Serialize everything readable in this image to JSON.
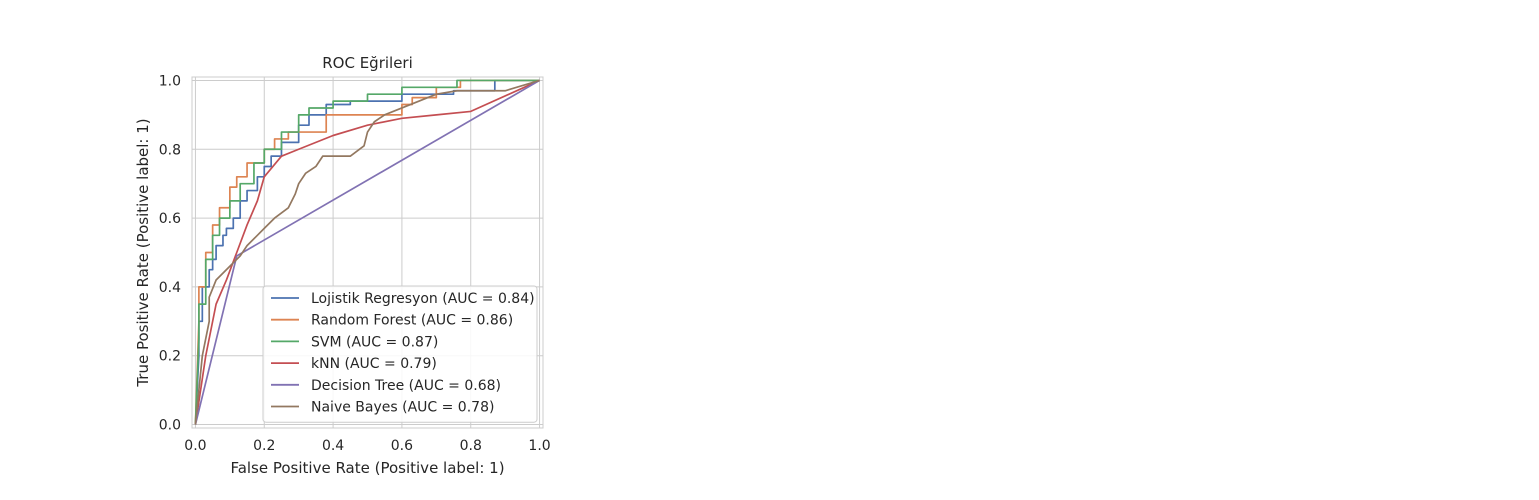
{
  "chart_data": {
    "type": "line",
    "title": "ROC Eğrileri",
    "xlabel": "False Positive Rate (Positive label: 1)",
    "ylabel": "True Positive Rate (Positive label: 1)",
    "xlim": [
      -0.01,
      1.01
    ],
    "ylim": [
      -0.01,
      1.01
    ],
    "xticks": [
      0.0,
      0.2,
      0.4,
      0.6,
      0.8,
      1.0
    ],
    "yticks": [
      0.0,
      0.2,
      0.4,
      0.6,
      0.8,
      1.0
    ],
    "xtick_labels": [
      "0.0",
      "0.2",
      "0.4",
      "0.6",
      "0.8",
      "1.0"
    ],
    "ytick_labels": [
      "0.0",
      "0.2",
      "0.4",
      "0.6",
      "0.8",
      "1.0"
    ],
    "grid": true,
    "legend_position": "lower-right",
    "series": [
      {
        "name": "Lojistik Regresyon (AUC = 0.84)",
        "color": "#4c72b0",
        "x": [
          0,
          0.01,
          0.01,
          0.02,
          0.02,
          0.04,
          0.04,
          0.05,
          0.05,
          0.06,
          0.06,
          0.08,
          0.08,
          0.09,
          0.09,
          0.11,
          0.11,
          0.13,
          0.13,
          0.15,
          0.15,
          0.18,
          0.18,
          0.2,
          0.2,
          0.22,
          0.22,
          0.25,
          0.25,
          0.3,
          0.3,
          0.33,
          0.33,
          0.38,
          0.38,
          0.45,
          0.45,
          0.6,
          0.6,
          0.75,
          0.75,
          0.87,
          0.87,
          1.0
        ],
        "y": [
          0,
          0.2,
          0.3,
          0.3,
          0.4,
          0.4,
          0.45,
          0.45,
          0.48,
          0.48,
          0.52,
          0.52,
          0.55,
          0.55,
          0.57,
          0.57,
          0.6,
          0.6,
          0.65,
          0.65,
          0.68,
          0.68,
          0.72,
          0.72,
          0.75,
          0.75,
          0.78,
          0.78,
          0.82,
          0.82,
          0.87,
          0.87,
          0.9,
          0.9,
          0.93,
          0.93,
          0.94,
          0.94,
          0.96,
          0.96,
          0.97,
          0.97,
          1.0,
          1.0
        ]
      },
      {
        "name": "Random Forest (AUC = 0.86)",
        "color": "#dd8452",
        "x": [
          0,
          0.01,
          0.01,
          0.03,
          0.03,
          0.05,
          0.05,
          0.07,
          0.07,
          0.1,
          0.1,
          0.12,
          0.12,
          0.15,
          0.15,
          0.2,
          0.2,
          0.23,
          0.23,
          0.27,
          0.27,
          0.32,
          0.32,
          0.38,
          0.38,
          0.45,
          0.45,
          0.6,
          0.6,
          0.63,
          0.63,
          0.7,
          0.7,
          0.77,
          0.77,
          1.0
        ],
        "y": [
          0,
          0.3,
          0.4,
          0.4,
          0.5,
          0.5,
          0.58,
          0.58,
          0.63,
          0.63,
          0.69,
          0.69,
          0.72,
          0.72,
          0.76,
          0.76,
          0.8,
          0.8,
          0.83,
          0.83,
          0.85,
          0.85,
          0.85,
          0.85,
          0.9,
          0.9,
          0.9,
          0.9,
          0.93,
          0.93,
          0.95,
          0.95,
          0.98,
          0.98,
          1.0,
          1.0
        ]
      },
      {
        "name": "SVM (AUC = 0.87)",
        "color": "#55a868",
        "x": [
          0,
          0.01,
          0.01,
          0.03,
          0.03,
          0.05,
          0.05,
          0.07,
          0.07,
          0.1,
          0.1,
          0.13,
          0.13,
          0.17,
          0.17,
          0.2,
          0.2,
          0.25,
          0.25,
          0.3,
          0.3,
          0.33,
          0.33,
          0.4,
          0.4,
          0.5,
          0.5,
          0.6,
          0.6,
          0.76,
          0.76,
          1.0
        ],
        "y": [
          0,
          0.25,
          0.35,
          0.35,
          0.48,
          0.48,
          0.55,
          0.55,
          0.6,
          0.6,
          0.65,
          0.65,
          0.7,
          0.7,
          0.76,
          0.76,
          0.8,
          0.8,
          0.85,
          0.85,
          0.9,
          0.9,
          0.92,
          0.92,
          0.94,
          0.94,
          0.96,
          0.96,
          0.98,
          0.98,
          1.0,
          1.0
        ]
      },
      {
        "name": "kNN (AUC = 0.79)",
        "color": "#c44e52",
        "x": [
          0,
          0.03,
          0.06,
          0.09,
          0.12,
          0.15,
          0.18,
          0.2,
          0.25,
          0.3,
          0.4,
          0.5,
          0.6,
          0.7,
          0.8,
          1.0
        ],
        "y": [
          0,
          0.2,
          0.35,
          0.42,
          0.5,
          0.58,
          0.65,
          0.72,
          0.78,
          0.8,
          0.84,
          0.87,
          0.89,
          0.9,
          0.91,
          1.0
        ]
      },
      {
        "name": "Decision Tree (AUC = 0.68)",
        "color": "#8172b3",
        "x": [
          0,
          0.12,
          1.0
        ],
        "y": [
          0,
          0.49,
          1.0
        ]
      },
      {
        "name": "Naive Bayes (AUC = 0.78)",
        "color": "#937860",
        "x": [
          0,
          0.02,
          0.04,
          0.04,
          0.06,
          0.08,
          0.1,
          0.13,
          0.15,
          0.18,
          0.2,
          0.23,
          0.27,
          0.29,
          0.3,
          0.32,
          0.35,
          0.37,
          0.4,
          0.45,
          0.49,
          0.5,
          0.52,
          0.55,
          0.6,
          0.65,
          0.7,
          0.76,
          0.82,
          0.9,
          1.0
        ],
        "y": [
          0,
          0.2,
          0.3,
          0.37,
          0.42,
          0.44,
          0.46,
          0.49,
          0.52,
          0.55,
          0.57,
          0.6,
          0.63,
          0.67,
          0.7,
          0.73,
          0.75,
          0.78,
          0.78,
          0.78,
          0.81,
          0.85,
          0.88,
          0.9,
          0.92,
          0.94,
          0.96,
          0.97,
          0.97,
          0.97,
          1.0
        ]
      }
    ]
  }
}
